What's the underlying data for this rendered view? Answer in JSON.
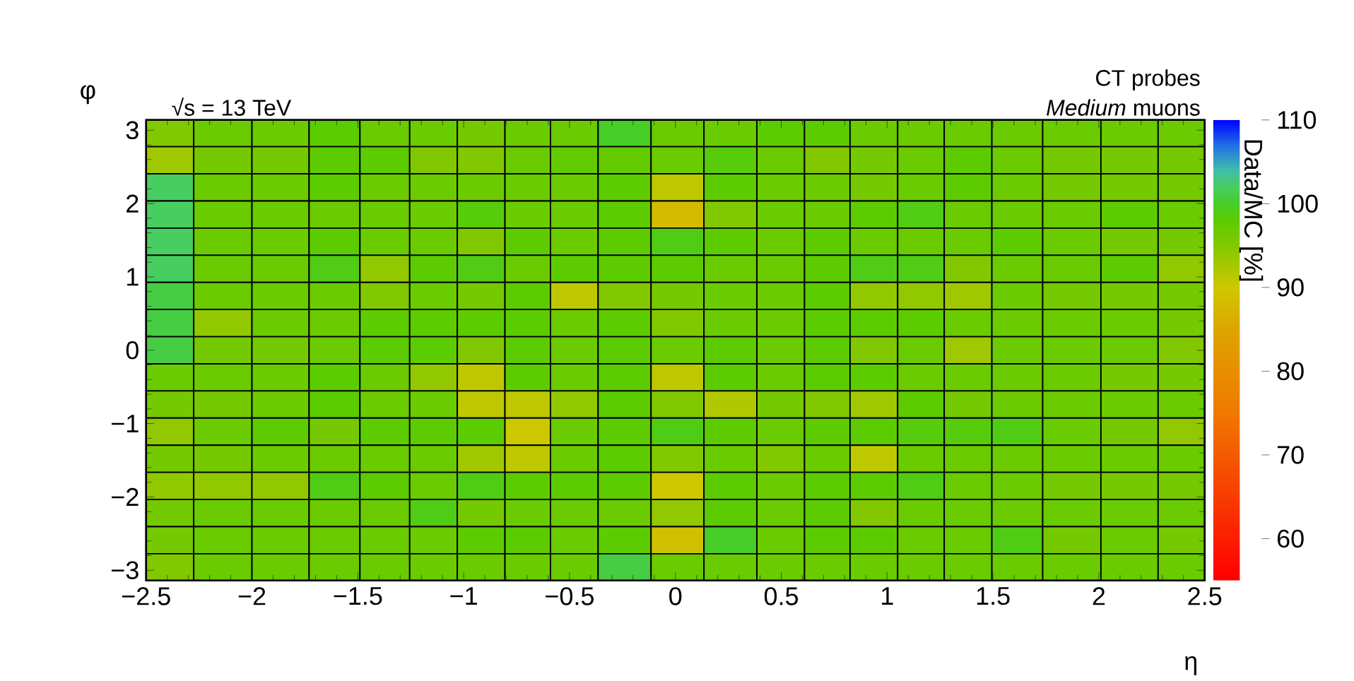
{
  "chart_data": {
    "type": "heatmap",
    "annotations": [
      "√s = 13 TeV",
      "CT probes",
      "*Medium* muons"
    ],
    "xlabel": "η",
    "ylabel": "φ",
    "clabel": "Data/MC [%]",
    "x": [
      -2.4,
      -2.15,
      -1.85,
      -1.61,
      -1.37,
      -1.14,
      -0.92,
      -0.69,
      -0.49,
      -0.24,
      0.01,
      0.26,
      0.51,
      0.71,
      0.94,
      1.16,
      1.38,
      1.61,
      1.86,
      2.16,
      2.4
    ],
    "y": [
      2.96,
      2.59,
      2.22,
      1.85,
      1.48,
      1.11,
      0.74,
      0.37,
      0,
      -0.37,
      -0.74,
      -1.11,
      -1.48,
      -1.85,
      -2.22,
      -2.59,
      -2.96
    ],
    "cells": [
      [
        95,
        97,
        97,
        98,
        97,
        97,
        96,
        97,
        97,
        100,
        97,
        97,
        98,
        98,
        97,
        97,
        97,
        97,
        97,
        97,
        97
      ],
      [
        93,
        96,
        96,
        98,
        98,
        95,
        95,
        97,
        97.5,
        97.5,
        97,
        98.5,
        97,
        95,
        96,
        97,
        98,
        97,
        96,
        96,
        96
      ],
      [
        102,
        97,
        97,
        98,
        97,
        97,
        97,
        97,
        97,
        98,
        91,
        98,
        97,
        97,
        96,
        97,
        98,
        97,
        96,
        96,
        96
      ],
      [
        102,
        97,
        97,
        97,
        97,
        97,
        98.5,
        97,
        97,
        98,
        88,
        95,
        97,
        97,
        98,
        99,
        97,
        97,
        97,
        98,
        97
      ],
      [
        102,
        97,
        97,
        98,
        97,
        97,
        95,
        98,
        97,
        98,
        99,
        98,
        97,
        98,
        97,
        97,
        97,
        98,
        97,
        96,
        96
      ],
      [
        102,
        97,
        97,
        99,
        94,
        98,
        99,
        97,
        98,
        98,
        98,
        97,
        97,
        98,
        99,
        99,
        95,
        97,
        97,
        98,
        94
      ],
      [
        101,
        97,
        97,
        97,
        95,
        97,
        96,
        98,
        91,
        95,
        96,
        97,
        97,
        98,
        94,
        94,
        93,
        97,
        96,
        96,
        96
      ],
      [
        101,
        94,
        97,
        97,
        98,
        98,
        98,
        98,
        97,
        98,
        95,
        97,
        97,
        98,
        98,
        98,
        97,
        97,
        97,
        97,
        96
      ],
      [
        101,
        96,
        96,
        97,
        98,
        98,
        95,
        98,
        97,
        98,
        97,
        98,
        97,
        98,
        95,
        97,
        93,
        97,
        97,
        97,
        95
      ],
      [
        97,
        97,
        97,
        98,
        97,
        94,
        91,
        98,
        97,
        98,
        91,
        98,
        97,
        98,
        98,
        97,
        97,
        97,
        97,
        96,
        96
      ],
      [
        96,
        96,
        97,
        98,
        97,
        97,
        91,
        91,
        94,
        98,
        95,
        92,
        96,
        95,
        93,
        98,
        96,
        97,
        97,
        97,
        97
      ],
      [
        94,
        97,
        98,
        96,
        98,
        98,
        98,
        90,
        97,
        98,
        99,
        98,
        97,
        98,
        98,
        98.5,
        98.5,
        99,
        97,
        96,
        94
      ],
      [
        96,
        96,
        97,
        97,
        97,
        97,
        93,
        91,
        97,
        98,
        95,
        97,
        95,
        97,
        91,
        97,
        97,
        97,
        97,
        97,
        97
      ],
      [
        94,
        94,
        94,
        99,
        98,
        97,
        99,
        98,
        98,
        98,
        90,
        98,
        97,
        98,
        98,
        99,
        97,
        97,
        96,
        96,
        96
      ],
      [
        96,
        97,
        97,
        97,
        97,
        99,
        96,
        97,
        97,
        97,
        94,
        98,
        97,
        98,
        95,
        97,
        97,
        97,
        97,
        97,
        97
      ],
      [
        96,
        97,
        97,
        97,
        97,
        97,
        98,
        98,
        97,
        98,
        89,
        100,
        97,
        98,
        98,
        97,
        97,
        99,
        96,
        97,
        96
      ],
      [
        95,
        97,
        97,
        97,
        97,
        97,
        97,
        97,
        97,
        101,
        97,
        97,
        97,
        97,
        97,
        97,
        97,
        97,
        97,
        97,
        97
      ]
    ],
    "clim": [
      55,
      110
    ],
    "cticks": [
      60,
      70,
      80,
      90,
      100,
      110
    ],
    "xlim": [
      -2.5,
      2.5
    ],
    "ylim": [
      -3.14,
      3.14
    ],
    "xticks": [
      {
        "value": -2.5,
        "label": "−2.5"
      },
      {
        "value": -2,
        "label": "−2"
      },
      {
        "value": -1.5,
        "label": "−1.5"
      },
      {
        "value": -1,
        "label": "−1"
      },
      {
        "value": -0.5,
        "label": "−0.5"
      },
      0,
      0.5,
      1,
      1.5,
      2,
      2.5
    ],
    "yticks": [
      {
        "value": -3,
        "label": "−3"
      },
      {
        "value": -2,
        "label": "−2"
      },
      {
        "value": -1,
        "label": "−1"
      },
      0,
      1,
      2,
      3
    ]
  }
}
